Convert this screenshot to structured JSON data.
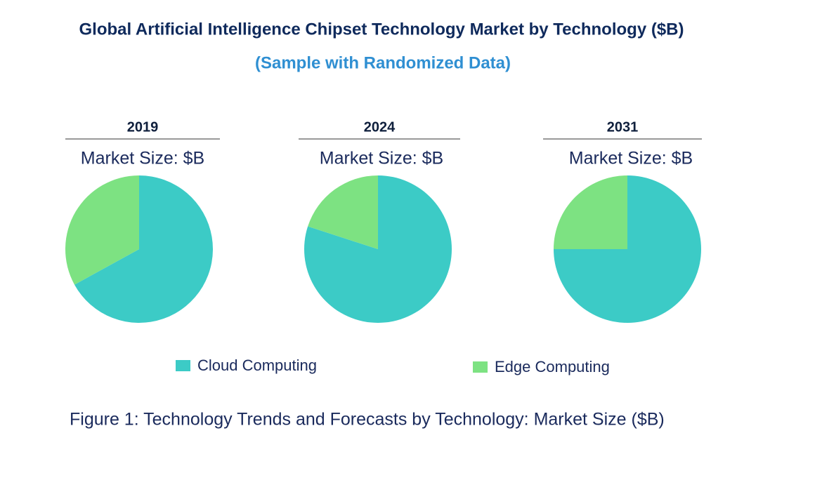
{
  "title": "Global Artificial Intelligence Chipset Technology Market by Technology ($B)",
  "subtitle": "(Sample with Randomized Data)",
  "caption": "Figure 1: Technology Trends and Forecasts by Technology: Market Size ($B)",
  "chart_data": [
    {
      "type": "pie",
      "title": "2019",
      "subtitle": "Market Size: $B",
      "categories": [
        "Cloud Computing",
        "Edge Computing"
      ],
      "colors": [
        "#3ccbc6",
        "#7de282"
      ],
      "values": [
        67,
        33
      ]
    },
    {
      "type": "pie",
      "title": "2024",
      "subtitle": "Market Size: $B",
      "categories": [
        "Cloud Computing",
        "Edge Computing"
      ],
      "colors": [
        "#3ccbc6",
        "#7de282"
      ],
      "values": [
        80,
        20
      ]
    },
    {
      "type": "pie",
      "title": "2031",
      "subtitle": "Market Size: $B",
      "categories": [
        "Cloud Computing",
        "Edge Computing"
      ],
      "colors": [
        "#3ccbc6",
        "#7de282"
      ],
      "values": [
        75,
        25
      ]
    }
  ]
}
